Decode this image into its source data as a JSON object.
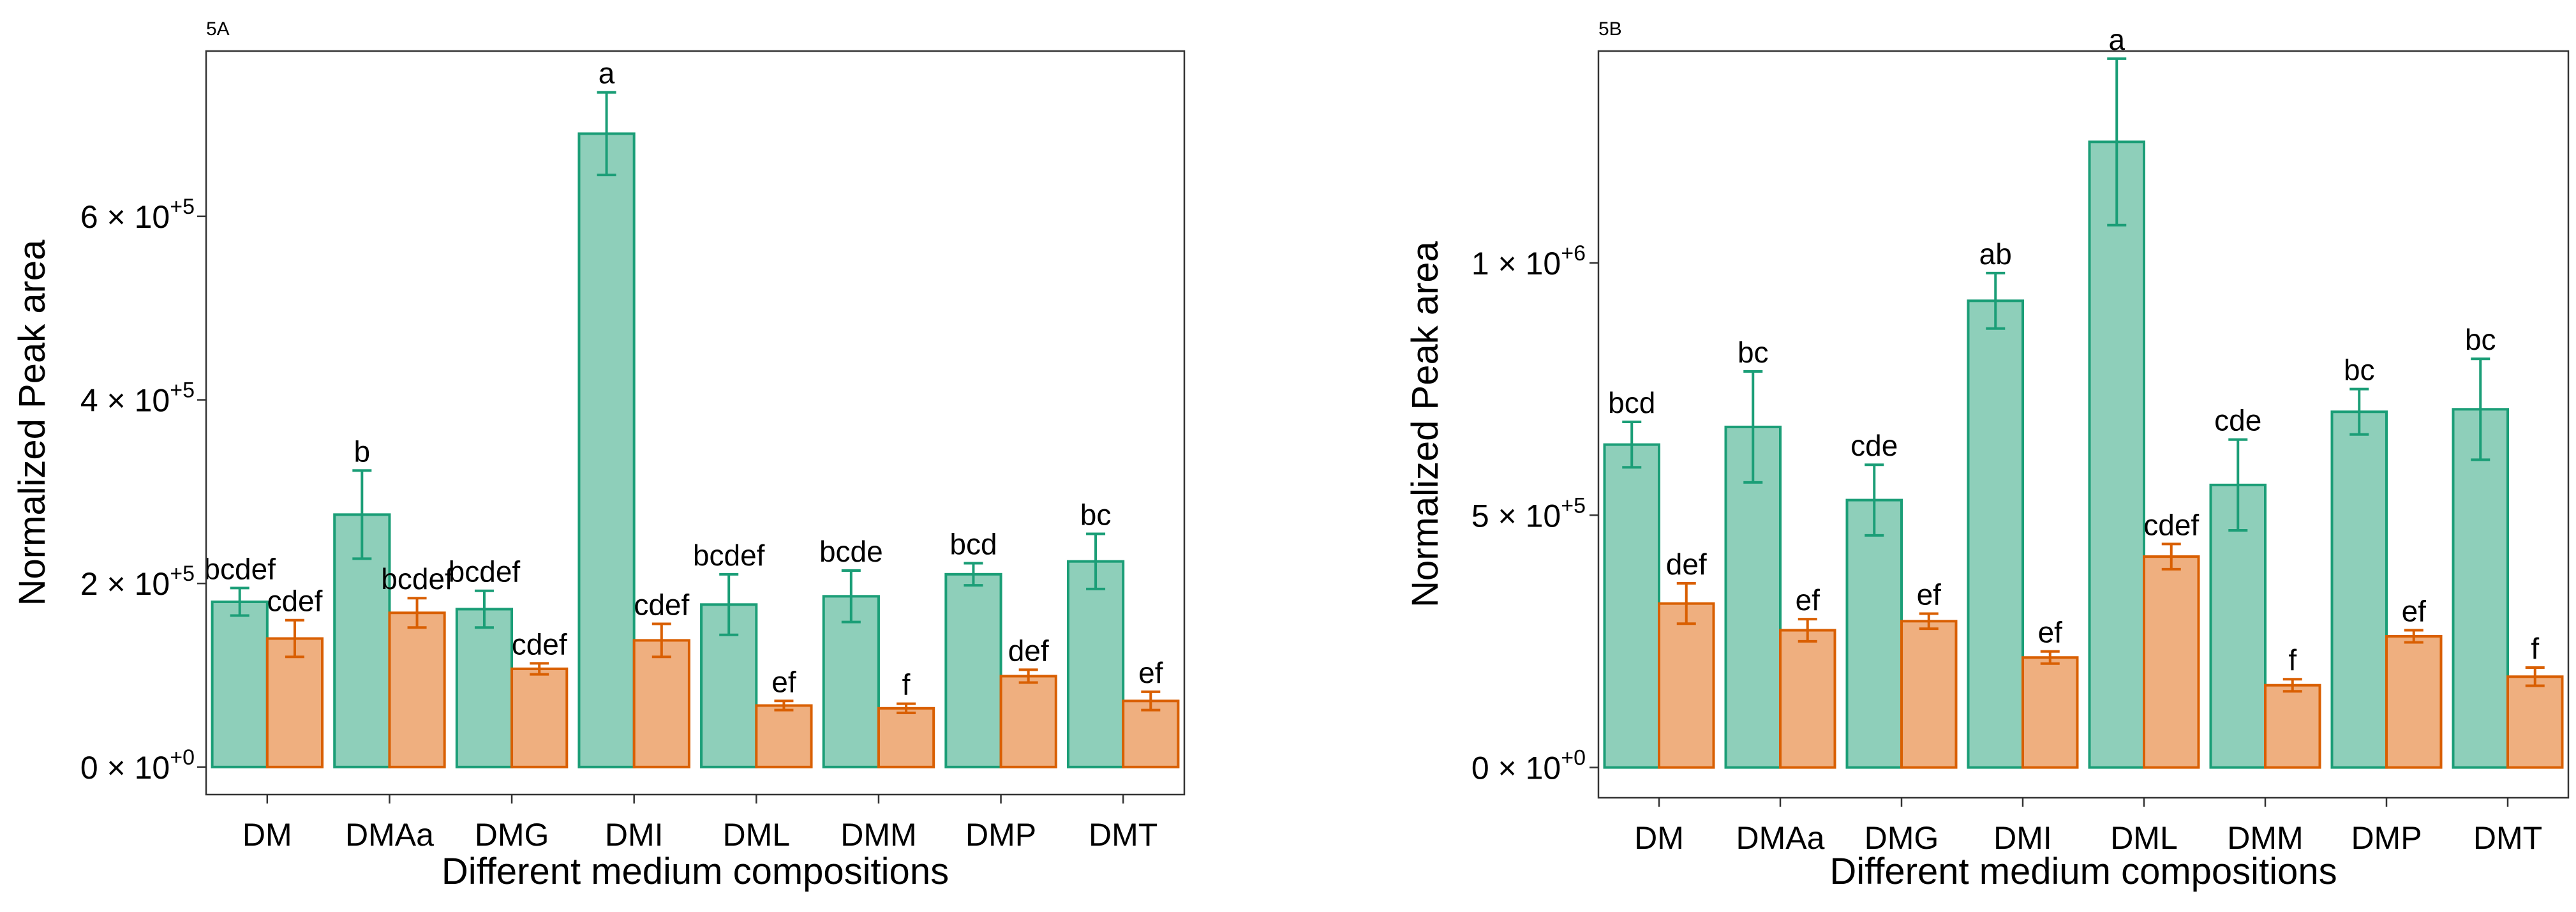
{
  "colors": {
    "series1_fill": "#8ecfba",
    "series1_stroke": "#1b9e77",
    "series2_fill": "#efaf7f",
    "series2_stroke": "#d95f02"
  },
  "chart_data": [
    {
      "type": "bar",
      "panel_label": "5A",
      "xlabel": "Different medium compositions",
      "ylabel": "Normalized Peak area",
      "categories": [
        "DM",
        "DMAa",
        "DMG",
        "DMI",
        "DML",
        "DMM",
        "DMP",
        "DMT"
      ],
      "ylim": [
        -30000,
        780000
      ],
      "yticks": [
        {
          "value": 0,
          "mantissa": "0 × 10",
          "exponent": "+0"
        },
        {
          "value": 200000,
          "mantissa": "2 × 10",
          "exponent": "+5"
        },
        {
          "value": 400000,
          "mantissa": "4 × 10",
          "exponent": "+5"
        },
        {
          "value": 600000,
          "mantissa": "6 × 10",
          "exponent": "+5"
        }
      ],
      "grid": false,
      "legend": "none",
      "series": [
        {
          "values": [
            180000,
            275000,
            172000,
            690000,
            177000,
            186000,
            210000,
            224000
          ],
          "errors": [
            15000,
            48000,
            20000,
            45000,
            33000,
            28000,
            12000,
            30000
          ],
          "labels": [
            "bcdef",
            "b",
            "bcdef",
            "a",
            "bcdef",
            "bcde",
            "bcd",
            "bc"
          ]
        },
        {
          "values": [
            140000,
            168000,
            107000,
            138000,
            67000,
            64000,
            99000,
            72000
          ],
          "errors": [
            20000,
            16000,
            6000,
            18000,
            5000,
            5000,
            7000,
            10000
          ],
          "labels": [
            "cdef",
            "bcdef",
            "cdef",
            "cdef",
            "ef",
            "f",
            "def",
            "ef"
          ]
        }
      ]
    },
    {
      "type": "bar",
      "panel_label": "5B",
      "xlabel": "Different medium compositions",
      "ylabel": "Normalized Peak area",
      "categories": [
        "DM",
        "DMAa",
        "DMG",
        "DMI",
        "DML",
        "DMM",
        "DMP",
        "DMT"
      ],
      "ylim": [
        -60000,
        1420000
      ],
      "yticks": [
        {
          "value": 0,
          "mantissa": "0 × 10",
          "exponent": "+0"
        },
        {
          "value": 500000,
          "mantissa": "5 × 10",
          "exponent": "+5"
        },
        {
          "value": 1000000,
          "mantissa": "1 × 10",
          "exponent": "+6"
        }
      ],
      "grid": false,
      "legend": "none",
      "series": [
        {
          "values": [
            640000,
            675000,
            530000,
            925000,
            1240000,
            560000,
            705000,
            710000
          ],
          "errors": [
            45000,
            110000,
            70000,
            55000,
            165000,
            90000,
            45000,
            100000
          ],
          "labels": [
            "bcd",
            "bc",
            "cde",
            "ab",
            "a",
            "cde",
            "bc",
            "bc"
          ]
        },
        {
          "values": [
            325000,
            272000,
            290000,
            218000,
            418000,
            163000,
            260000,
            180000
          ],
          "errors": [
            40000,
            22000,
            15000,
            12000,
            25000,
            12000,
            12000,
            18000
          ],
          "labels": [
            "def",
            "ef",
            "ef",
            "ef",
            "cdef",
            "f",
            "ef",
            "f"
          ]
        }
      ]
    }
  ]
}
